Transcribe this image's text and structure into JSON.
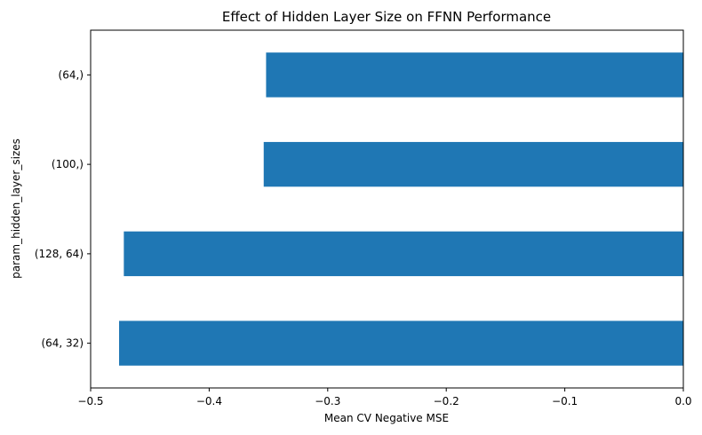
{
  "chart_data": {
    "type": "bar",
    "orientation": "horizontal",
    "title": "Effect of Hidden Layer Size on FFNN Performance",
    "xlabel": "Mean CV Negative MSE",
    "ylabel": "param_hidden_layer_sizes",
    "categories": [
      "(64,)",
      "(100,)",
      "(128, 64)",
      "(64, 32)"
    ],
    "values": [
      -0.352,
      -0.354,
      -0.472,
      -0.476
    ],
    "xlim": [
      -0.5,
      0.0
    ],
    "xticks": [
      -0.5,
      -0.4,
      -0.3,
      -0.2,
      -0.1,
      0.0
    ],
    "xtick_labels": [
      "−0.5",
      "−0.4",
      "−0.3",
      "−0.2",
      "−0.1",
      "0.0"
    ],
    "grid": false,
    "bar_color": "#1f77b4"
  }
}
